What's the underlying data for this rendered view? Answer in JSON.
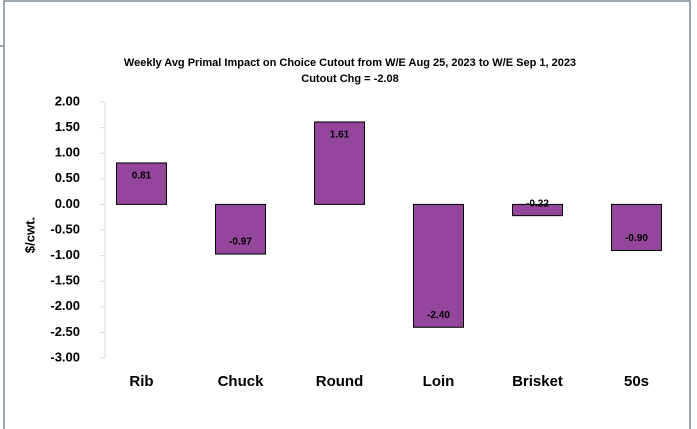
{
  "chart_data": {
    "type": "bar",
    "title": "Weekly Avg Primal Impact on Choice Cutout from W/E Aug 25, 2023 to W/E Sep 1, 2023",
    "subtitle": "Cutout Chg = -2.08",
    "y_label": "$/cwt.",
    "categories": [
      "Rib",
      "Chuck",
      "Round",
      "Loin",
      "Brisket",
      "50s"
    ],
    "values": [
      0.81,
      -0.97,
      1.61,
      -2.4,
      -0.22,
      -0.9
    ],
    "value_labels": [
      "0.81",
      "-0.97",
      "1.61",
      "-2.40",
      "-0.22",
      "-0.90"
    ],
    "color": "#93469b",
    "ylim": [
      -3,
      2
    ],
    "yticks": [
      {
        "value": 2,
        "label": "2.00"
      },
      {
        "value": 1.5,
        "label": "1.50"
      },
      {
        "value": 1,
        "label": "1.00"
      },
      {
        "value": 0.5,
        "label": "0.50"
      },
      {
        "value": 0,
        "label": "0.00"
      },
      {
        "value": -0.5,
        "label": "-0.50"
      },
      {
        "value": -1,
        "label": "-1.00"
      },
      {
        "value": -1.5,
        "label": "-1.50"
      },
      {
        "value": -2,
        "label": "-2.00"
      },
      {
        "value": -2.5,
        "label": "-2.50"
      },
      {
        "value": -3,
        "label": "-3.00"
      }
    ],
    "grid": false
  }
}
